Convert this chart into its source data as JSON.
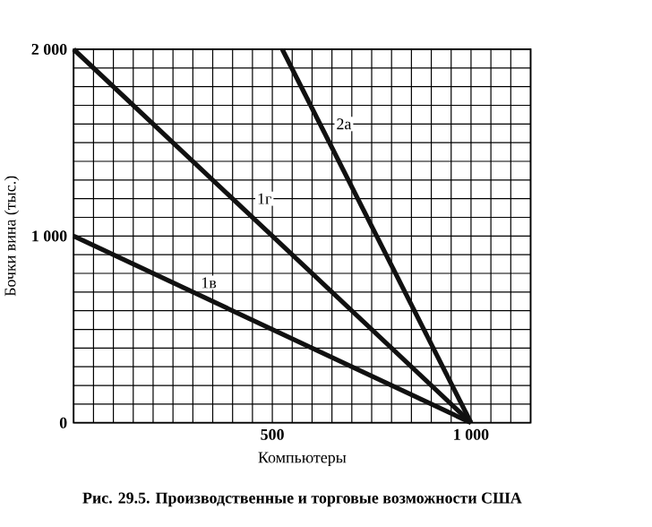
{
  "chart_data": {
    "type": "line",
    "xlabel": "Компьютеры",
    "ylabel": "Бочки вина (тыс.)",
    "series": [
      {
        "color": "#111111",
        "x": [
          0,
          1000
        ],
        "values": [
          1000,
          0
        ]
      },
      {
        "color": "#111111",
        "x": [
          0,
          1000
        ],
        "values": [
          2000,
          0
        ]
      },
      {
        "color": "#111111",
        "x": [
          525,
          1000
        ],
        "values": [
          2000,
          0
        ]
      }
    ],
    "xlim": [
      0,
      1150
    ],
    "ylim": [
      0,
      2000
    ],
    "xticks": [
      {
        "value": 0,
        "label": null
      },
      {
        "value": 50,
        "label": null
      },
      {
        "value": 100,
        "label": null
      },
      {
        "value": 150,
        "label": null
      },
      {
        "value": 200,
        "label": null
      },
      {
        "value": 250,
        "label": null
      },
      {
        "value": 300,
        "label": null
      },
      {
        "value": 350,
        "label": null
      },
      {
        "value": 400,
        "label": null
      },
      {
        "value": 450,
        "label": null
      },
      500,
      {
        "value": 550,
        "label": null
      },
      {
        "value": 600,
        "label": null
      },
      {
        "value": 650,
        "label": null
      },
      {
        "value": 700,
        "label": null
      },
      {
        "value": 750,
        "label": null
      },
      {
        "value": 800,
        "label": null
      },
      {
        "value": 850,
        "label": null
      },
      {
        "value": 900,
        "label": null
      },
      {
        "value": 950,
        "label": null
      },
      {
        "value": 1000,
        "label": "1 000"
      },
      {
        "value": 1050,
        "label": null
      },
      {
        "value": 1100,
        "label": null
      },
      {
        "value": 1150,
        "label": null
      }
    ],
    "yticks": [
      0,
      {
        "value": 100,
        "label": null
      },
      {
        "value": 200,
        "label": null
      },
      {
        "value": 300,
        "label": null
      },
      {
        "value": 400,
        "label": null
      },
      {
        "value": 500,
        "label": null
      },
      {
        "value": 600,
        "label": null
      },
      {
        "value": 700,
        "label": null
      },
      {
        "value": 800,
        "label": null
      },
      {
        "value": 900,
        "label": null
      },
      {
        "value": 1000,
        "label": "1 000"
      },
      {
        "value": 1100,
        "label": null
      },
      {
        "value": 1200,
        "label": null
      },
      {
        "value": 1300,
        "label": null
      },
      {
        "value": 1400,
        "label": null
      },
      {
        "value": 1500,
        "label": null
      },
      {
        "value": 1600,
        "label": null
      },
      {
        "value": 1700,
        "label": null
      },
      {
        "value": 1800,
        "label": null
      },
      {
        "value": 1900,
        "label": null
      },
      {
        "value": 2000,
        "label": "2 000"
      }
    ],
    "grid": true,
    "marker": "none",
    "line_style": "solid",
    "annotations": [
      {
        "text": "1в",
        "x": 340,
        "y": 750
      },
      {
        "text": "1г",
        "x": 480,
        "y": 1200
      },
      {
        "text": "2а",
        "x": 680,
        "y": 1600
      },
      "Рис. 29.5. Производственные и торговые возможности США"
    ]
  }
}
